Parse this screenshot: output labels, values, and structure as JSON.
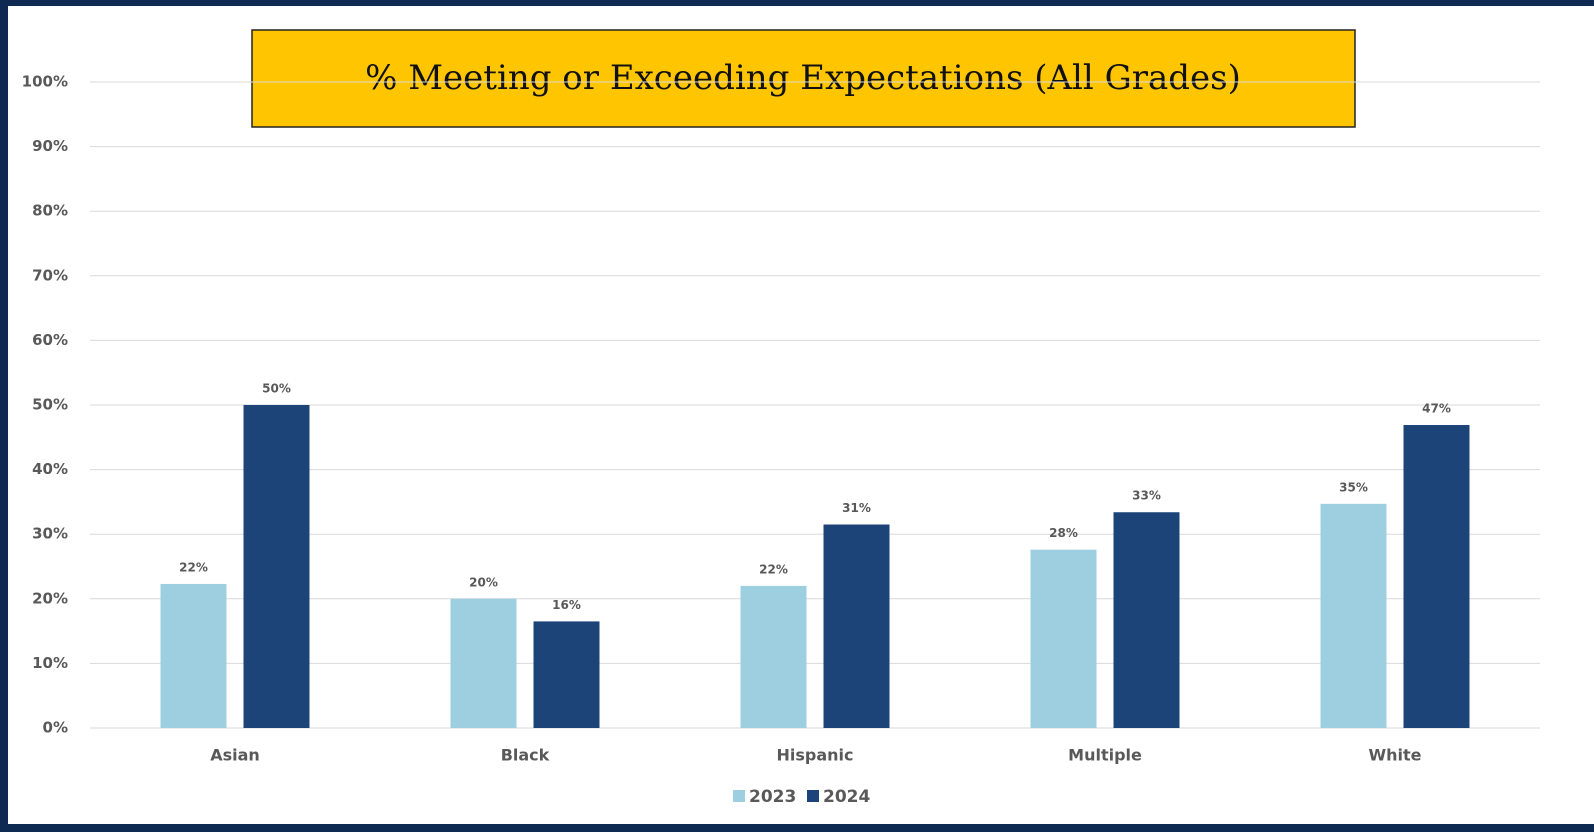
{
  "chart_data": {
    "type": "bar",
    "title": "% Meeting or Exceeding Expectations (All Grades)",
    "categories": [
      "Asian",
      "Black",
      "Hispanic",
      "Multiple",
      "White"
    ],
    "series": [
      {
        "name": "2023",
        "color": "#9ecfe0",
        "values": [
          22.3,
          20,
          22,
          27.6,
          34.7
        ],
        "value_labels": [
          "22%",
          "20%",
          "22%",
          "28%",
          "35%"
        ]
      },
      {
        "name": "2024",
        "color": "#1c4479",
        "values": [
          50,
          16.5,
          31.5,
          33.4,
          46.9
        ],
        "value_labels": [
          "50%",
          "16%",
          "31%",
          "33%",
          "47%"
        ]
      }
    ],
    "ylim": [
      0,
      100
    ],
    "yticks": [
      {
        "value": 0,
        "label": "0%"
      },
      {
        "value": 10,
        "label": "10%"
      },
      {
        "value": 20,
        "label": "20%"
      },
      {
        "value": 30,
        "label": "30%"
      },
      {
        "value": 40,
        "label": "40%"
      },
      {
        "value": 50,
        "label": "50%"
      },
      {
        "value": 60,
        "label": "60%"
      },
      {
        "value": 70,
        "label": "70%"
      },
      {
        "value": 80,
        "label": "80%"
      },
      {
        "value": 90,
        "label": "90%"
      },
      {
        "value": 100,
        "label": "100%"
      }
    ],
    "grid": true,
    "legend": "bottom"
  }
}
